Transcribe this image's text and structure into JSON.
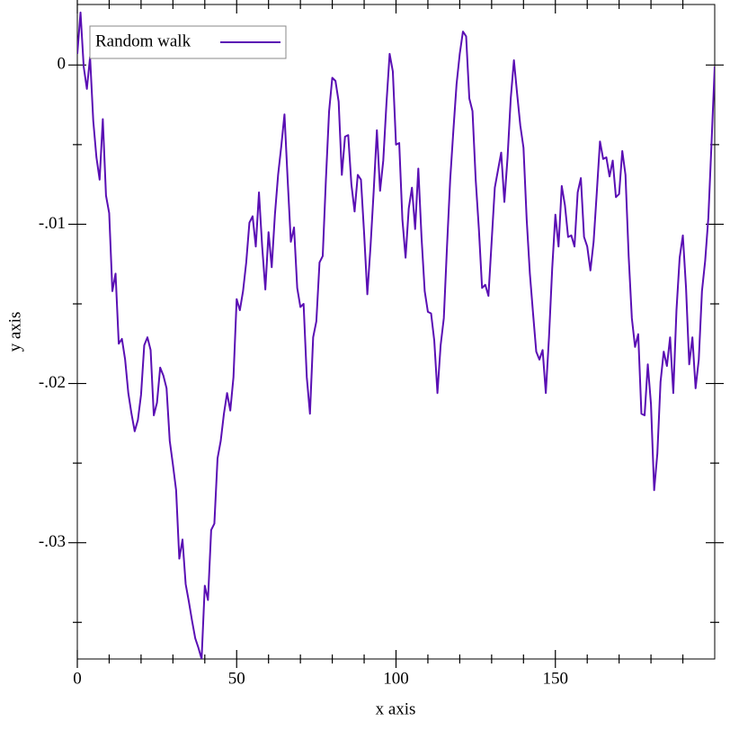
{
  "chart_data": {
    "type": "line",
    "xlabel": "x axis",
    "ylabel": "y axis",
    "xlim": [
      0,
      200
    ],
    "ylim": [
      -0.0373,
      0.0038
    ],
    "xticks": [
      0,
      50,
      100,
      150
    ],
    "yticks": [
      0,
      {
        "value": -0.01,
        "label": "-.01"
      },
      {
        "value": -0.02,
        "label": "-.02"
      },
      {
        "value": -0.03,
        "label": "-.03"
      }
    ],
    "xminorticks": [
      10,
      20,
      30,
      40,
      60,
      70,
      80,
      90,
      110,
      120,
      130,
      140,
      160,
      170,
      180,
      190
    ],
    "yminorticks": [
      -0.005,
      -0.015,
      -0.025,
      -0.035
    ],
    "legend": "top-left",
    "x": [
      0,
      1,
      2,
      3,
      4,
      5,
      6,
      7,
      8,
      9,
      10,
      11,
      12,
      13,
      14,
      15,
      16,
      17,
      18,
      19,
      20,
      21,
      22,
      23,
      24,
      25,
      26,
      27,
      28,
      29,
      30,
      31,
      32,
      33,
      34,
      35,
      36,
      37,
      38,
      39,
      40,
      41,
      42,
      43,
      44,
      45,
      46,
      47,
      48,
      49,
      50,
      51,
      52,
      53,
      54,
      55,
      56,
      57,
      58,
      59,
      60,
      61,
      62,
      63,
      64,
      65,
      66,
      67,
      68,
      69,
      70,
      71,
      72,
      73,
      74,
      75,
      76,
      77,
      78,
      79,
      80,
      81,
      82,
      83,
      84,
      85,
      86,
      87,
      88,
      89,
      90,
      91,
      92,
      93,
      94,
      95,
      96,
      97,
      98,
      99,
      100,
      101,
      102,
      103,
      104,
      105,
      106,
      107,
      108,
      109,
      110,
      111,
      112,
      113,
      114,
      115,
      116,
      117,
      118,
      119,
      120,
      121,
      122,
      123,
      124,
      125,
      126,
      127,
      128,
      129,
      130,
      131,
      132,
      133,
      134,
      135,
      136,
      137,
      138,
      139,
      140,
      141,
      142,
      143,
      144,
      145,
      146,
      147,
      148,
      149,
      150,
      151,
      152,
      153,
      154,
      155,
      156,
      157,
      158,
      159,
      160,
      161,
      162,
      163,
      164,
      165,
      166,
      167,
      168,
      169,
      170,
      171,
      172,
      173,
      174,
      175,
      176,
      177,
      178,
      179,
      180,
      181,
      182,
      183,
      184,
      185,
      186,
      187,
      188,
      189,
      190,
      191,
      192,
      193,
      194,
      195,
      196,
      197,
      198,
      199,
      200
    ],
    "series": [
      {
        "name": "Random walk",
        "color": "#5a0fb4",
        "values": [
          0.0007,
          0.0033,
          -0.0001,
          -0.0015,
          0.0005,
          -0.0035,
          -0.0058,
          -0.0072,
          -0.0034,
          -0.0082,
          -0.0093,
          -0.0142,
          -0.0131,
          -0.0175,
          -0.0172,
          -0.0185,
          -0.0206,
          -0.0219,
          -0.023,
          -0.0223,
          -0.0207,
          -0.0176,
          -0.0171,
          -0.0179,
          -0.022,
          -0.0212,
          -0.019,
          -0.0195,
          -0.0203,
          -0.0236,
          -0.0251,
          -0.0267,
          -0.031,
          -0.0298,
          -0.0326,
          -0.0337,
          -0.0349,
          -0.036,
          -0.0366,
          -0.0373,
          -0.0327,
          -0.0336,
          -0.0292,
          -0.0288,
          -0.0247,
          -0.0236,
          -0.0219,
          -0.0206,
          -0.0217,
          -0.0196,
          -0.0147,
          -0.0154,
          -0.0142,
          -0.0124,
          -0.0099,
          -0.0095,
          -0.0114,
          -0.008,
          -0.0114,
          -0.0141,
          -0.0105,
          -0.0127,
          -0.0094,
          -0.0069,
          -0.0051,
          -0.0031,
          -0.0072,
          -0.0111,
          -0.0102,
          -0.014,
          -0.0152,
          -0.015,
          -0.0196,
          -0.0219,
          -0.0171,
          -0.0161,
          -0.0124,
          -0.012,
          -0.0072,
          -0.0029,
          -0.0008,
          -0.001,
          -0.0023,
          -0.0069,
          -0.0045,
          -0.0044,
          -0.0075,
          -0.0092,
          -0.0069,
          -0.0072,
          -0.0106,
          -0.0144,
          -0.0114,
          -0.0079,
          -0.0041,
          -0.0079,
          -0.006,
          -0.0024,
          0.0007,
          -0.0004,
          -0.005,
          -0.0049,
          -0.0097,
          -0.0121,
          -0.009,
          -0.0077,
          -0.0103,
          -0.0065,
          -0.0108,
          -0.0142,
          -0.0155,
          -0.0156,
          -0.0173,
          -0.0206,
          -0.0176,
          -0.0159,
          -0.0114,
          -0.0072,
          -0.0041,
          -0.0012,
          0.0007,
          0.0021,
          0.0018,
          -0.0021,
          -0.0029,
          -0.0072,
          -0.0103,
          -0.014,
          -0.0138,
          -0.0145,
          -0.0111,
          -0.0077,
          -0.0066,
          -0.0055,
          -0.0086,
          -0.0058,
          -0.0021,
          0.0003,
          -0.0018,
          -0.0038,
          -0.0052,
          -0.0097,
          -0.0131,
          -0.0156,
          -0.018,
          -0.0185,
          -0.0179,
          -0.0206,
          -0.0171,
          -0.0128,
          -0.0094,
          -0.0114,
          -0.0076,
          -0.0088,
          -0.0108,
          -0.0107,
          -0.0114,
          -0.008,
          -0.0071,
          -0.0108,
          -0.0114,
          -0.0129,
          -0.0111,
          -0.008,
          -0.0048,
          -0.0059,
          -0.0058,
          -0.007,
          -0.006,
          -0.0083,
          -0.0081,
          -0.0054,
          -0.0069,
          -0.012,
          -0.0159,
          -0.0177,
          -0.0169,
          -0.0219,
          -0.022,
          -0.0188,
          -0.0213,
          -0.0267,
          -0.0244,
          -0.0199,
          -0.018,
          -0.0189,
          -0.0171,
          -0.0206,
          -0.0154,
          -0.0121,
          -0.0107,
          -0.014,
          -0.0188,
          -0.0171,
          -0.0203,
          -0.0185,
          -0.0142,
          -0.0123,
          -0.0096,
          -0.0049,
          -0.0001
        ]
      }
    ]
  }
}
